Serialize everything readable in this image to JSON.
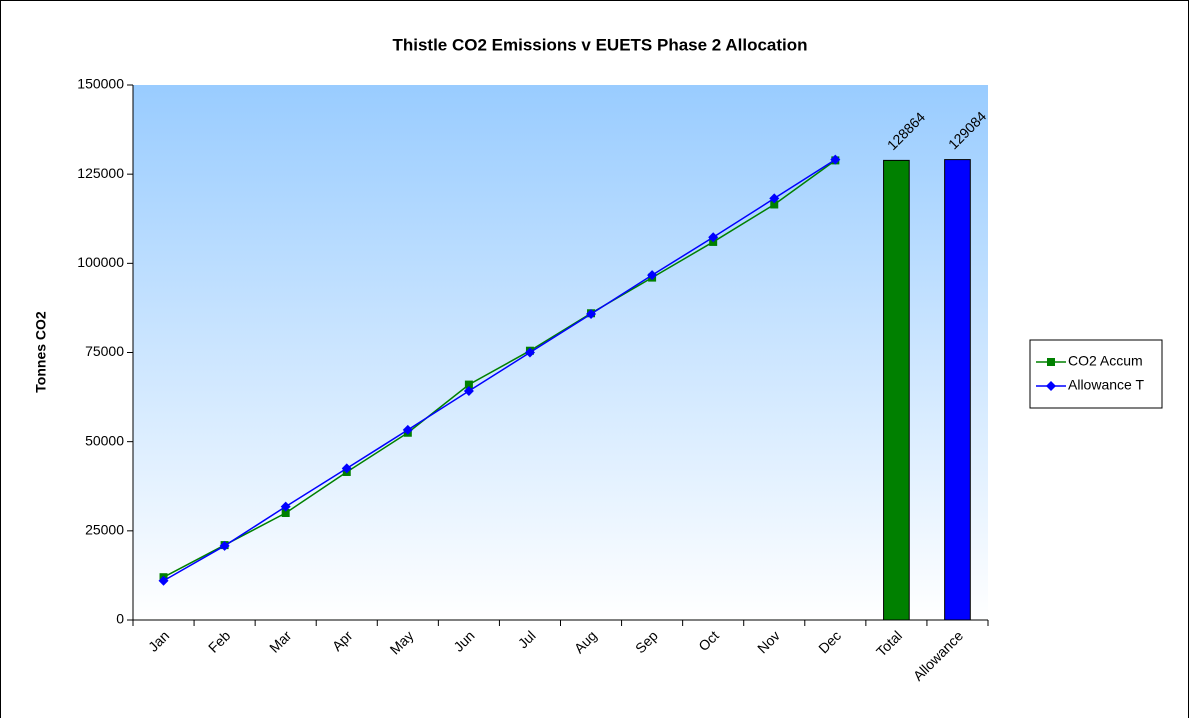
{
  "chart_data": {
    "type": "line",
    "title": "Thistle CO2 Emissions v EUETS Phase 2 Allocation",
    "y_label": "Tonnes CO2",
    "categories": [
      "Jan",
      "Feb",
      "Mar",
      "Apr",
      "May",
      "Jun",
      "Jul",
      "Aug",
      "Sep",
      "Oct",
      "Nov",
      "Dec",
      "Total",
      "Allowance"
    ],
    "series": [
      {
        "name": "CO2 Accum",
        "color": "#008000",
        "marker": "square",
        "values": [
          12000,
          21000,
          30000,
          41500,
          52500,
          66000,
          75500,
          86000,
          96000,
          106000,
          116500,
          128864,
          null,
          null
        ]
      },
      {
        "name": "Allowance T",
        "color": "#0000ff",
        "marker": "diamond",
        "values": [
          11000,
          20800,
          31800,
          42500,
          53300,
          64200,
          75000,
          85800,
          96700,
          107300,
          118200,
          129084,
          null,
          null
        ]
      }
    ],
    "bars": {
      "values": [
        null,
        null,
        null,
        null,
        null,
        null,
        null,
        null,
        null,
        null,
        null,
        null,
        128864,
        129084
      ],
      "colors": [
        null,
        null,
        null,
        null,
        null,
        null,
        null,
        null,
        null,
        null,
        null,
        null,
        "#008000",
        "#0000ff"
      ]
    },
    "ylim": [
      0,
      150000
    ],
    "yticks": [
      0,
      25000,
      50000,
      75000,
      100000,
      125000,
      150000
    ],
    "legend": "right"
  }
}
